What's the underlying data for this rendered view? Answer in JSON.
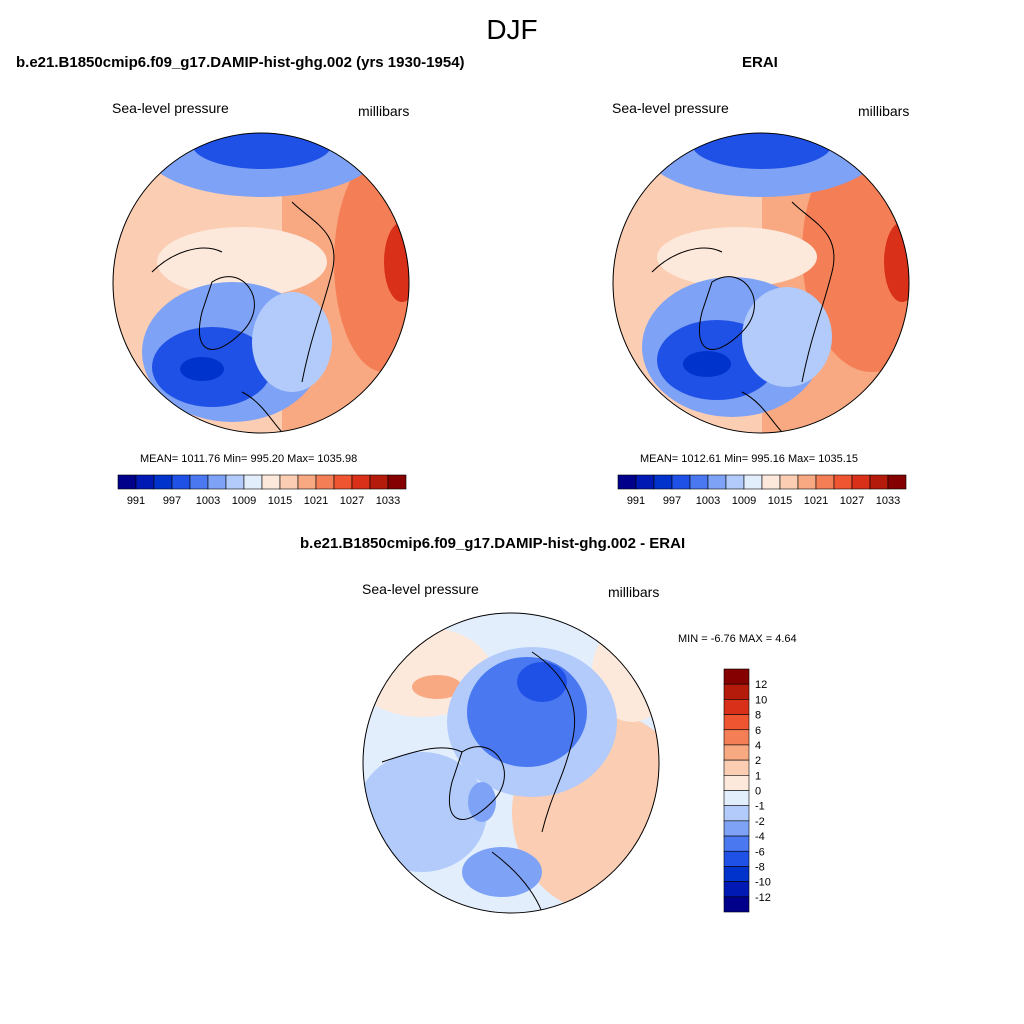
{
  "page": {
    "title": "DJF"
  },
  "panels": {
    "model": {
      "title": "b.e21.B1850cmip6.f09_g17.DAMIP-hist-ghg.002 (yrs 1930-1954)",
      "left_label": "Sea-level pressure",
      "right_label": "millibars",
      "stats": "MEAN= 1011.76  Min= 995.20  Max= 1035.98"
    },
    "obs": {
      "title": "ERAI",
      "left_label": "Sea-level pressure",
      "right_label": "millibars",
      "stats": "MEAN= 1012.61  Min= 995.16  Max= 1035.15"
    },
    "diff": {
      "title": "b.e21.B1850cmip6.f09_g17.DAMIP-hist-ghg.002 - ERAI",
      "left_label": "Sea-level pressure",
      "right_label": "millibars",
      "stats": "MIN =  -6.76 MAX =   4.64"
    }
  },
  "chart_data": [
    {
      "type": "heatmap",
      "projection": "north polar stereographic",
      "variable": "Sea-level pressure",
      "units": "millibars",
      "mean": 1011.76,
      "min": 995.2,
      "max": 1035.98,
      "colorbar": {
        "orientation": "horizontal",
        "tick_labels": [
          "991",
          "997",
          "1003",
          "1009",
          "1015",
          "1021",
          "1027",
          "1033"
        ],
        "colors": [
          "#00008b",
          "#0019b4",
          "#0033cc",
          "#2051e6",
          "#4a78f0",
          "#7ea2f5",
          "#b2cbfa",
          "#e3eefd",
          "#fde8dc",
          "#fbcdb3",
          "#f8a982",
          "#f47f56",
          "#ee5530",
          "#d9301a",
          "#b51b0a",
          "#850000"
        ]
      }
    },
    {
      "type": "heatmap",
      "projection": "north polar stereographic",
      "variable": "Sea-level pressure",
      "units": "millibars",
      "mean": 1012.61,
      "min": 995.16,
      "max": 1035.15,
      "colorbar": {
        "orientation": "horizontal",
        "tick_labels": [
          "991",
          "997",
          "1003",
          "1009",
          "1015",
          "1021",
          "1027",
          "1033"
        ],
        "colors": [
          "#00008b",
          "#0019b4",
          "#0033cc",
          "#2051e6",
          "#4a78f0",
          "#7ea2f5",
          "#b2cbfa",
          "#e3eefd",
          "#fde8dc",
          "#fbcdb3",
          "#f8a982",
          "#f47f56",
          "#ee5530",
          "#d9301a",
          "#b51b0a",
          "#850000"
        ]
      }
    },
    {
      "type": "heatmap",
      "projection": "north polar stereographic",
      "variable": "Sea-level pressure",
      "units": "millibars",
      "min": -6.76,
      "max": 4.64,
      "colorbar": {
        "orientation": "vertical",
        "tick_labels": [
          "12",
          "10",
          "8",
          "6",
          "4",
          "2",
          "1",
          "0",
          "-1",
          "-2",
          "-4",
          "-6",
          "-8",
          "-10",
          "-12"
        ],
        "colors": [
          "#850000",
          "#b51b0a",
          "#d9301a",
          "#ee5530",
          "#f47f56",
          "#f8a982",
          "#fbcdb3",
          "#fde8dc",
          "#e3eefd",
          "#b2cbfa",
          "#7ea2f5",
          "#4a78f0",
          "#2051e6",
          "#0033cc",
          "#0019b4",
          "#00008b"
        ]
      }
    }
  ]
}
